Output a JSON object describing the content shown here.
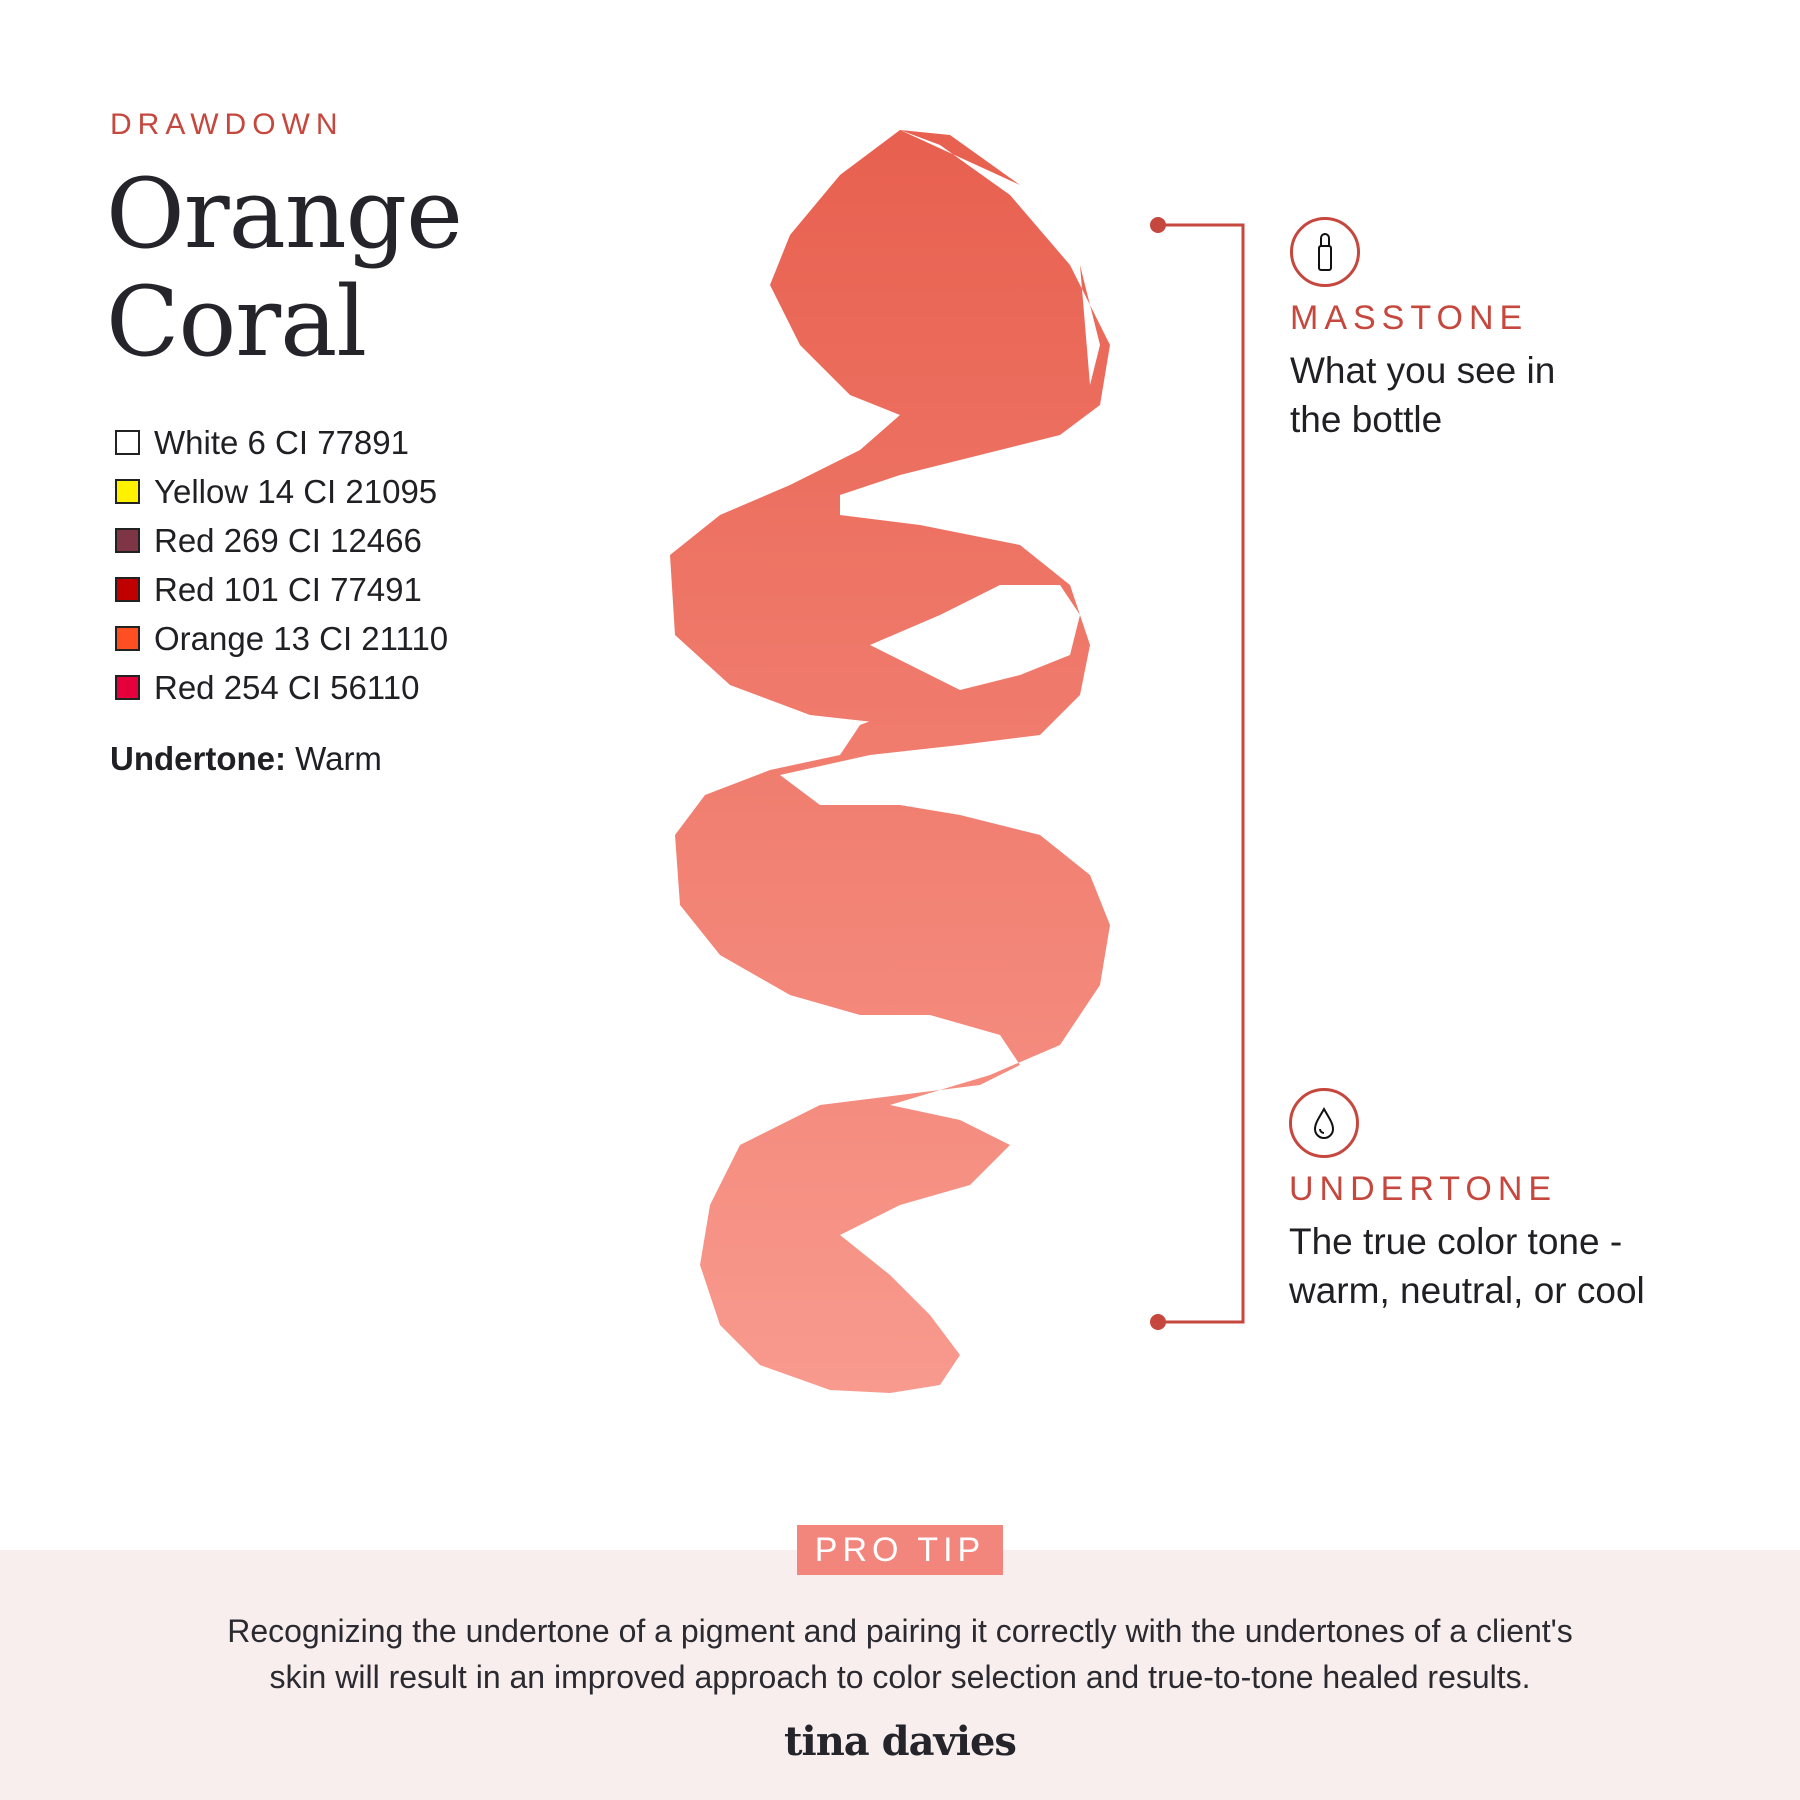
{
  "eyebrow": "DRAWDOWN",
  "title_line1": "Orange",
  "title_line2": "Coral",
  "ingredients": [
    {
      "label": "White 6 CI 77891",
      "color": "#ffffff"
    },
    {
      "label": "Yellow 14 CI 21095",
      "color": "#fff200"
    },
    {
      "label": "Red 269 CI 12466",
      "color": "#7e3545"
    },
    {
      "label": "Red 101 CI 77491",
      "color": "#c00000"
    },
    {
      "label": "Orange 13 CI 21110",
      "color": "#fd4f22"
    },
    {
      "label": "Red 254 CI 56110",
      "color": "#e4003a"
    }
  ],
  "undertone": {
    "label": "Undertone:",
    "value": "Warm"
  },
  "swatch_colors": {
    "top": "#e8604f",
    "bottom": "#f89a8e"
  },
  "masstone": {
    "icon": "lipstick-bottle-icon",
    "label": "MASSTONE",
    "line1": "What you see in",
    "line2": "the bottle"
  },
  "undertone_info": {
    "icon": "drop-icon",
    "label": "UNDERTONE",
    "line1": "The true color tone -",
    "line2": "warm, neutral, or cool"
  },
  "pro_tip": {
    "badge": "PRO TIP",
    "line1": "Recognizing the undertone of a pigment and pairing it correctly with the undertones of a client's",
    "line2": "skin will result in an improved approach to color selection and true-to-tone healed results."
  },
  "brand": "tina davies",
  "accent": "#c6473d"
}
